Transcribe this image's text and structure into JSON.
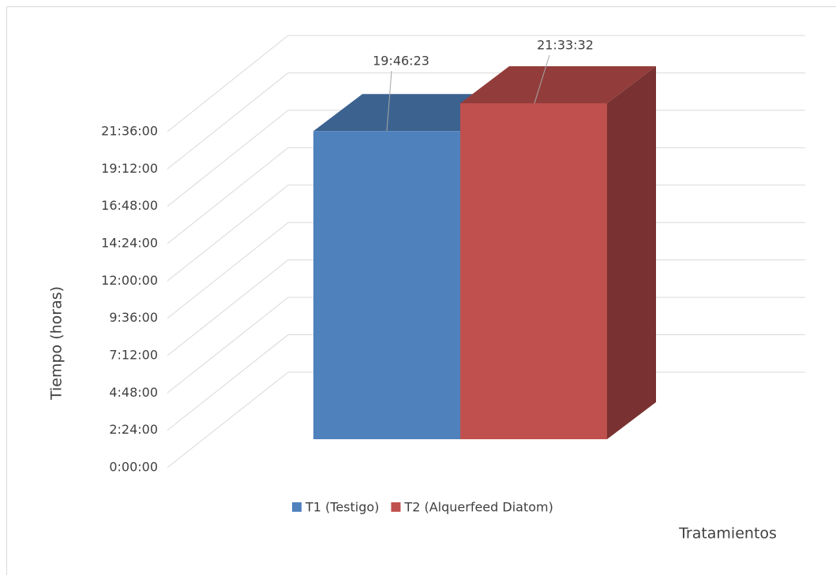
{
  "chart_data": {
    "type": "bar3d",
    "y_label": "Tiempo (horas)",
    "x_label": "Tratamientos",
    "series": [
      {
        "name": "T1 (Testigo)",
        "color": "#4f81bd",
        "values": [
          19.7730556
        ],
        "value_labels": [
          "19:46:23"
        ]
      },
      {
        "name": "T2 (Alquerfeed Diatom)",
        "color": "#c0504d",
        "values": [
          21.5588889
        ],
        "value_labels": [
          "21:33:32"
        ]
      }
    ],
    "ylim": [
      0,
      21.6
    ],
    "yticks": [
      {
        "value": 0,
        "label": "0:00:00"
      },
      {
        "value": 2.4,
        "label": "2:24:00"
      },
      {
        "value": 4.8,
        "label": "4:48:00"
      },
      {
        "value": 7.2,
        "label": "7:12:00"
      },
      {
        "value": 9.6,
        "label": "9:36:00"
      },
      {
        "value": 12,
        "label": "12:00:00"
      },
      {
        "value": 14.4,
        "label": "14:24:00"
      },
      {
        "value": 16.8,
        "label": "16:48:00"
      },
      {
        "value": 19.2,
        "label": "19:12:00"
      },
      {
        "value": 21.6,
        "label": "21:36:00"
      }
    ],
    "grid": true,
    "legend": "bottom"
  }
}
